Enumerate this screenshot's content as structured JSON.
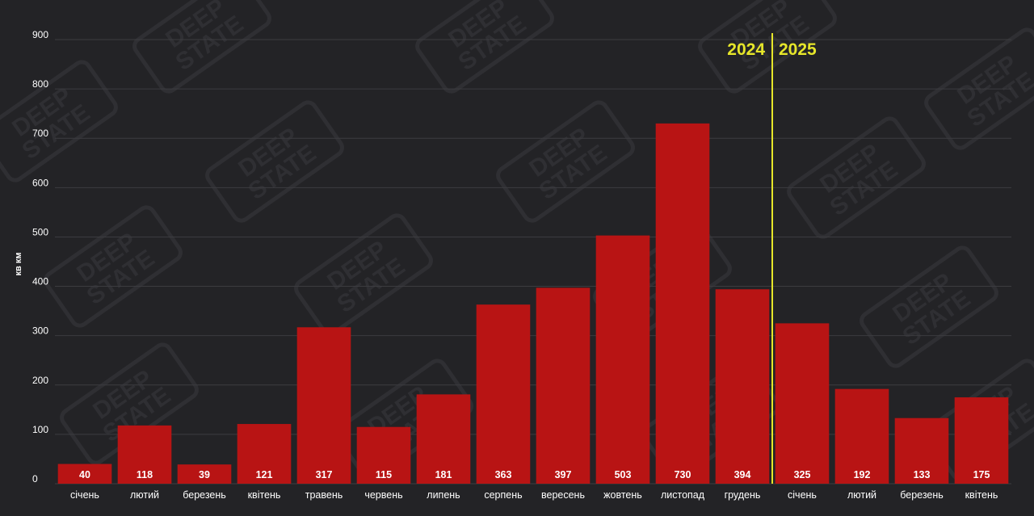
{
  "chart_data": {
    "type": "bar",
    "ylabel": "кв км",
    "ylim": [
      0,
      900
    ],
    "yticks": [
      0,
      100,
      200,
      300,
      400,
      500,
      600,
      700,
      800,
      900
    ],
    "categories": [
      "січень",
      "лютий",
      "березень",
      "квітень",
      "травень",
      "червень",
      "липень",
      "серпень",
      "вересень",
      "жовтень",
      "листопад",
      "грудень",
      "січень",
      "лютий",
      "березень",
      "квітень"
    ],
    "values": [
      40,
      118,
      39,
      121,
      317,
      115,
      181,
      363,
      397,
      503,
      730,
      394,
      325,
      192,
      133,
      175
    ],
    "year_labels": [
      "2024",
      "2025"
    ],
    "year_split_after_index": 11,
    "grid": true,
    "bar_color": "#b81414",
    "grid_color": "#3c3c40",
    "divider_color": "#e6e62a",
    "background": "#232326",
    "watermark": "DEEP STATE"
  }
}
